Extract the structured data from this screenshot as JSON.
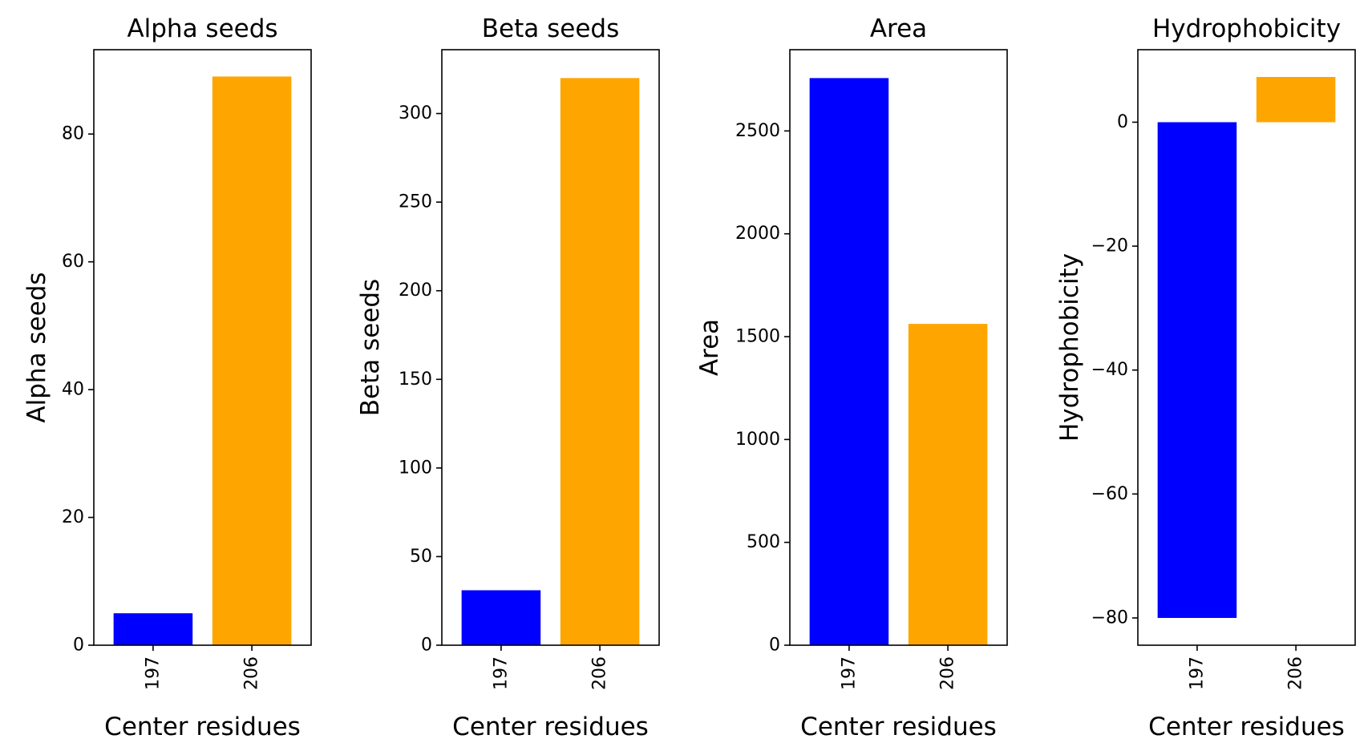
{
  "chart_data": [
    {
      "type": "bar",
      "title": "Alpha seeds",
      "xlabel": "Center residues",
      "ylabel": "Alpha seeds",
      "categories": [
        "197",
        "206"
      ],
      "values": [
        5,
        89
      ],
      "colors": [
        "#0000ff",
        "#ffa500"
      ],
      "ylim": [
        0,
        93.2
      ],
      "yticks": [
        0,
        20,
        40,
        60,
        80
      ],
      "ytick_labels": [
        "0",
        "20",
        "40",
        "60",
        "80"
      ],
      "grid": false,
      "legend": "none"
    },
    {
      "type": "bar",
      "title": "Beta seeds",
      "xlabel": "Center residues",
      "ylabel": "Beta seeds",
      "categories": [
        "197",
        "206"
      ],
      "values": [
        31,
        320
      ],
      "colors": [
        "#0000ff",
        "#ffa500"
      ],
      "ylim": [
        0,
        336
      ],
      "yticks": [
        0,
        50,
        100,
        150,
        200,
        250,
        300
      ],
      "ytick_labels": [
        "0",
        "50",
        "100",
        "150",
        "200",
        "250",
        "300"
      ],
      "grid": false,
      "legend": "none"
    },
    {
      "type": "bar",
      "title": "Area",
      "xlabel": "Center residues",
      "ylabel": "Area",
      "categories": [
        "197",
        "206"
      ],
      "values": [
        2757,
        1562
      ],
      "colors": [
        "#0000ff",
        "#ffa500"
      ],
      "ylim": [
        0,
        2895
      ],
      "yticks": [
        0,
        500,
        1000,
        1500,
        2000,
        2500
      ],
      "ytick_labels": [
        "0",
        "500",
        "1000",
        "1500",
        "2000",
        "2500"
      ],
      "grid": false,
      "legend": "none"
    },
    {
      "type": "bar",
      "title": "Hydrophobicity",
      "xlabel": "Center residues",
      "ylabel": "Hydrophobicity",
      "categories": [
        "197",
        "206"
      ],
      "values": [
        -80,
        7.3
      ],
      "colors": [
        "#0000ff",
        "#ffa500"
      ],
      "ylim": [
        -84.4,
        11.7
      ],
      "yticks": [
        -80,
        -60,
        -40,
        -20,
        0
      ],
      "ytick_labels": [
        "−80",
        "−60",
        "−40",
        "−20",
        "0"
      ],
      "grid": false,
      "legend": "none"
    }
  ]
}
